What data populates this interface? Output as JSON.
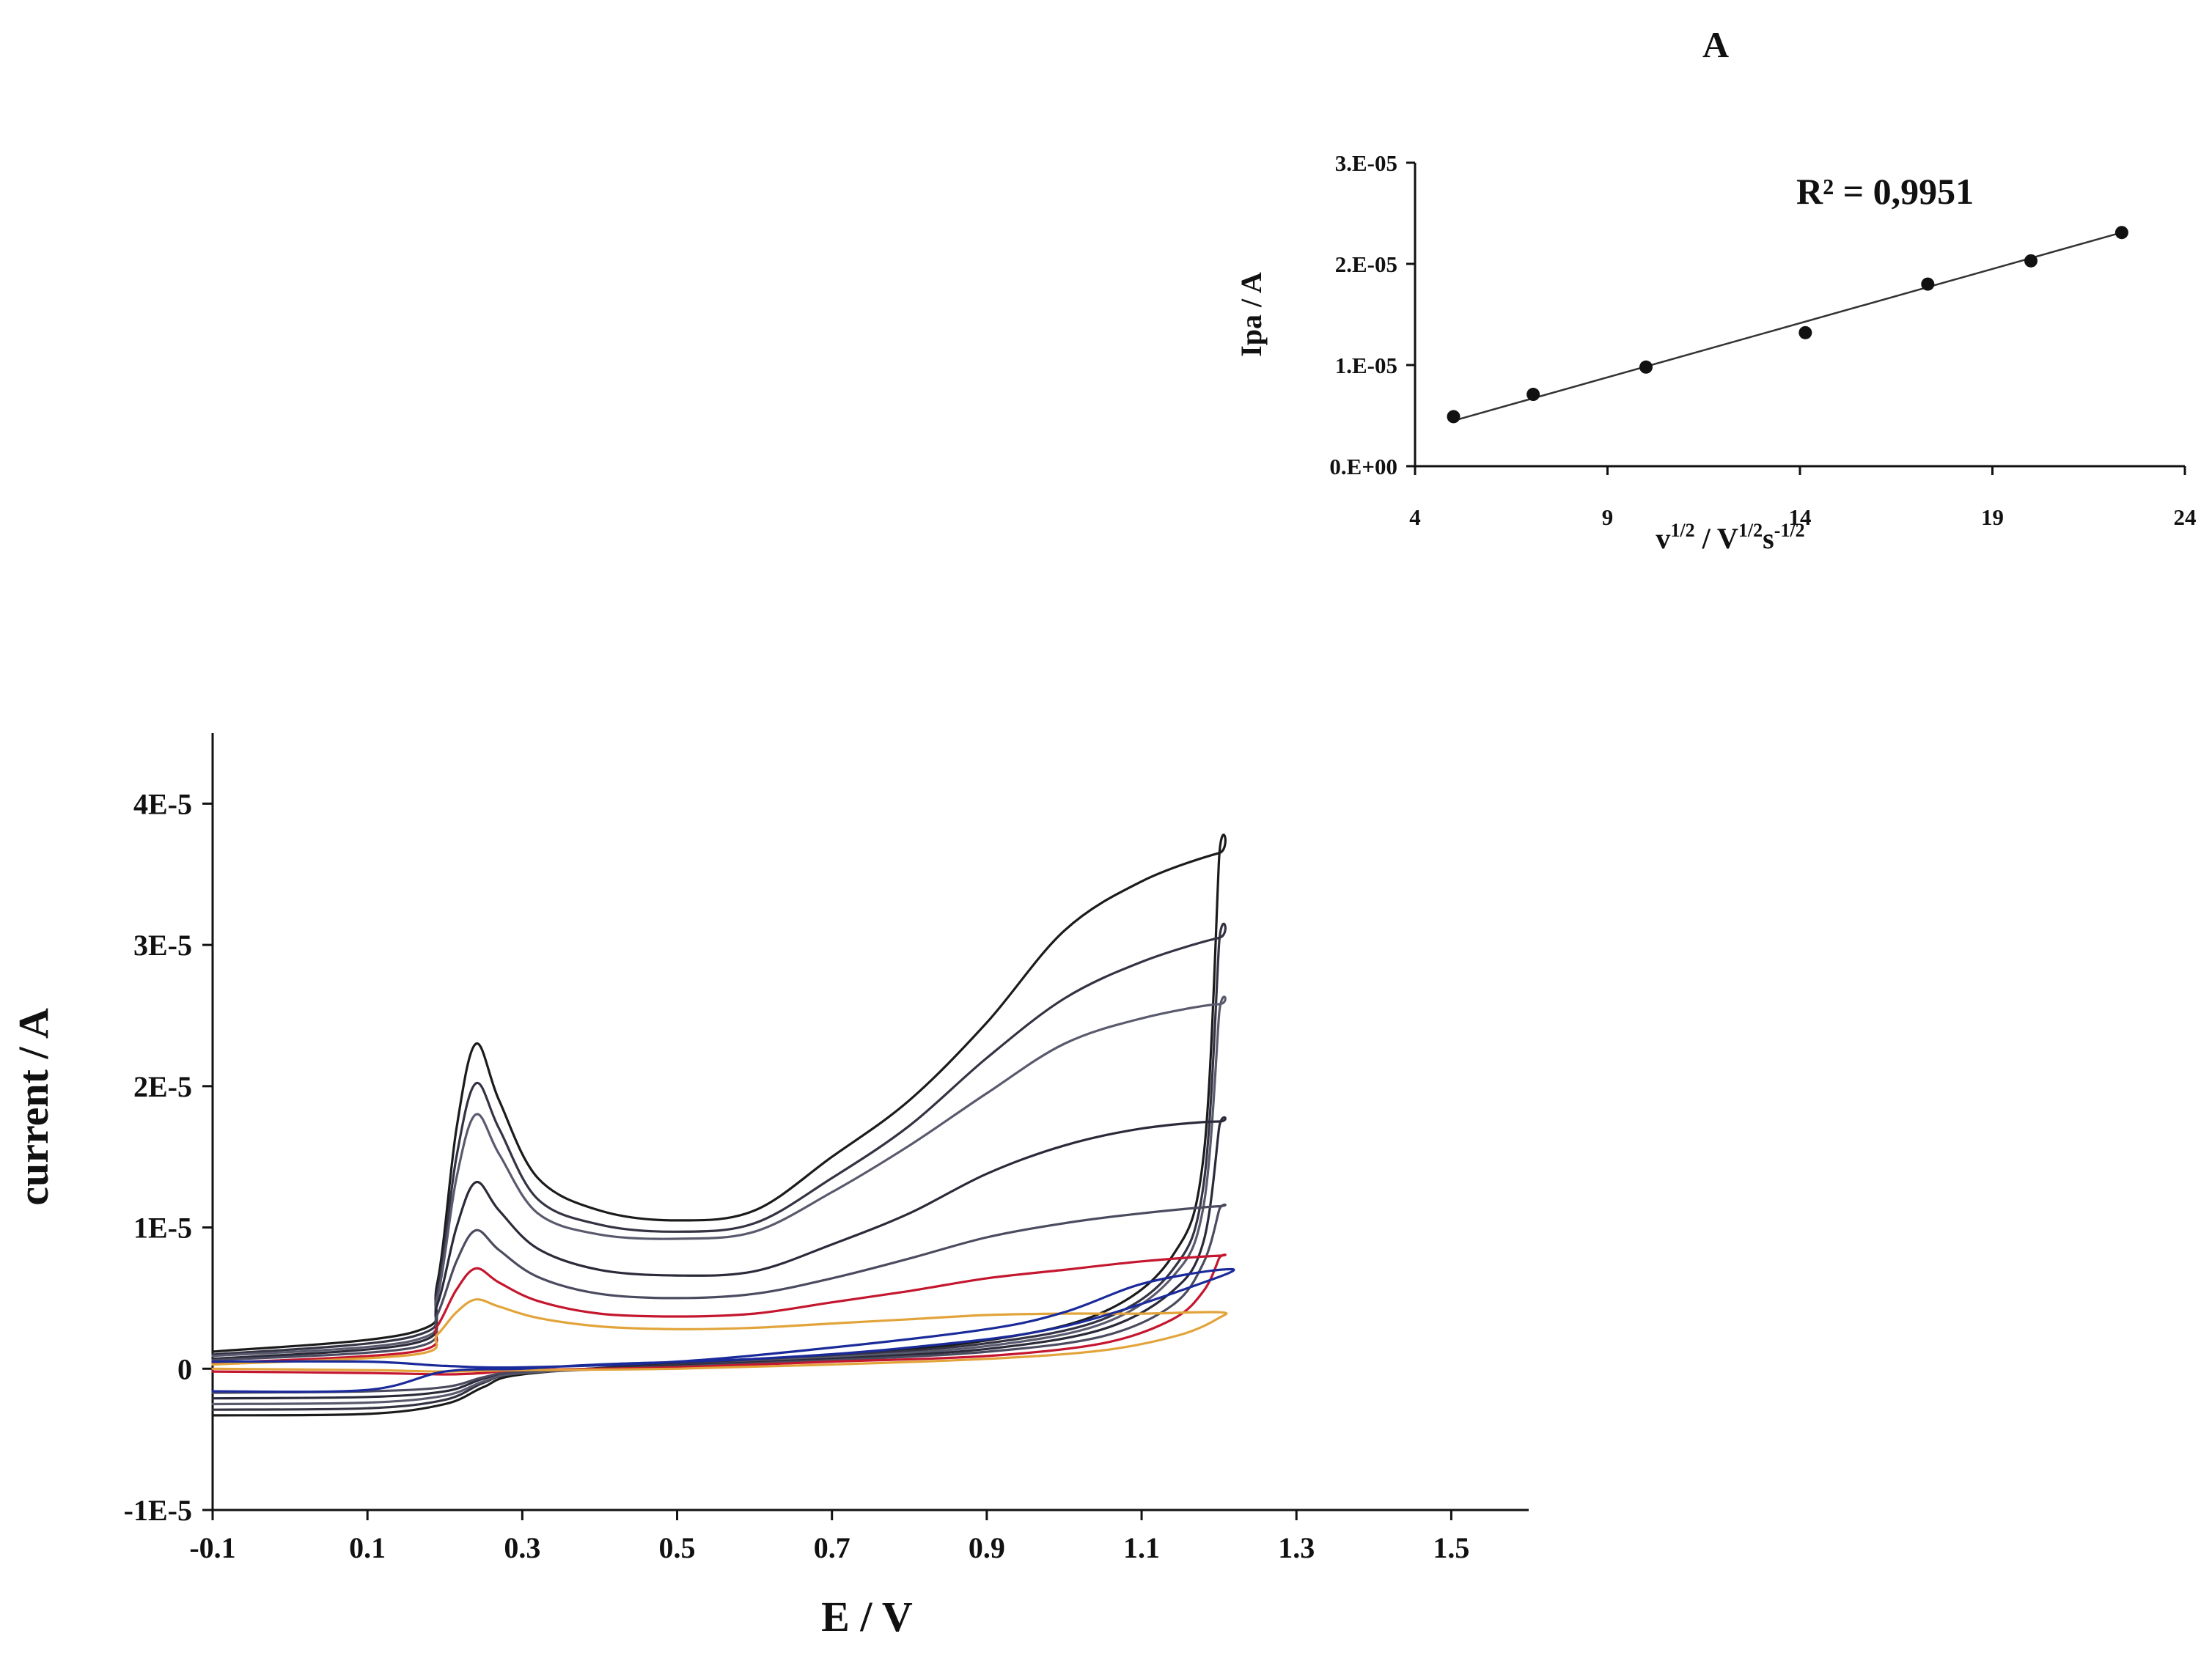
{
  "chart_data": [
    {
      "id": "cv",
      "type": "line",
      "title": "",
      "xlabel": "E / V",
      "ylabel": "current / A",
      "xlim": [
        -0.1,
        1.6
      ],
      "ylim": [
        -1e-05,
        4.5e-05
      ],
      "x_ticks": [
        -0.1,
        0.1,
        0.3,
        0.5,
        0.7,
        0.9,
        1.1,
        1.3,
        1.5
      ],
      "x_tick_labels": [
        "-0.1",
        "0.1",
        "0.3",
        "0.5",
        "0.7",
        "0.9",
        "1.1",
        "1.3",
        "1.5"
      ],
      "y_ticks": [
        -1e-05,
        0,
        1e-05,
        2e-05,
        3e-05,
        4e-05
      ],
      "y_tick_labels": [
        "-1E-5",
        "0",
        "1E-5",
        "2E-5",
        "3E-5",
        "4E-5"
      ],
      "grid": false,
      "legend": "none",
      "series": [
        {
          "color": "#1b1b1b",
          "anodic": [
            [
              -0.1,
              1.2e-06
            ],
            [
              0.16,
              2.6e-06
            ],
            [
              0.19,
              6e-06
            ],
            [
              0.215,
              1.7e-05
            ],
            [
              0.24,
              2.3e-05
            ],
            [
              0.27,
              1.9e-05
            ],
            [
              0.32,
              1.35e-05
            ],
            [
              0.4,
              1.12e-05
            ],
            [
              0.5,
              1.05e-05
            ],
            [
              0.6,
              1.12e-05
            ],
            [
              0.7,
              1.5e-05
            ],
            [
              0.8,
              1.9e-05
            ],
            [
              0.9,
              2.45e-05
            ],
            [
              1.0,
              3.1e-05
            ],
            [
              1.1,
              3.45e-05
            ],
            [
              1.2,
              3.65e-05
            ]
          ],
          "cathodic": [
            [
              1.2,
              3.6e-05
            ],
            [
              1.18,
              1.5e-05
            ],
            [
              1.14,
              8e-06
            ],
            [
              1.05,
              4e-06
            ],
            [
              0.9,
              2e-06
            ],
            [
              0.7,
              1e-06
            ],
            [
              0.5,
              4e-07
            ],
            [
              0.3,
              -4e-07
            ],
            [
              0.25,
              -1.3e-06
            ],
            [
              0.2,
              -2.5e-06
            ],
            [
              0.1,
              -3.2e-06
            ],
            [
              -0.1,
              -3.3e-06
            ]
          ]
        },
        {
          "color": "#333344",
          "anodic": [
            [
              -0.1,
              1e-06
            ],
            [
              0.16,
              2.3e-06
            ],
            [
              0.19,
              5.5e-06
            ],
            [
              0.215,
              1.5e-05
            ],
            [
              0.24,
              2.02e-05
            ],
            [
              0.27,
              1.7e-05
            ],
            [
              0.32,
              1.2e-05
            ],
            [
              0.4,
              1.02e-05
            ],
            [
              0.5,
              9.7e-06
            ],
            [
              0.6,
              1.03e-05
            ],
            [
              0.7,
              1.35e-05
            ],
            [
              0.8,
              1.72e-05
            ],
            [
              0.9,
              2.2e-05
            ],
            [
              1.0,
              2.62e-05
            ],
            [
              1.1,
              2.88e-05
            ],
            [
              1.2,
              3.05e-05
            ]
          ],
          "cathodic": [
            [
              1.2,
              3e-05
            ],
            [
              1.18,
              1.3e-05
            ],
            [
              1.14,
              7e-06
            ],
            [
              1.05,
              3.5e-06
            ],
            [
              0.9,
              1.8e-06
            ],
            [
              0.7,
              9e-07
            ],
            [
              0.5,
              3e-07
            ],
            [
              0.3,
              -3e-07
            ],
            [
              0.25,
              -1e-06
            ],
            [
              0.2,
              -2.2e-06
            ],
            [
              0.1,
              -2.8e-06
            ],
            [
              -0.1,
              -2.9e-06
            ]
          ]
        },
        {
          "color": "#5a5a6e",
          "anodic": [
            [
              -0.1,
              9e-07
            ],
            [
              0.16,
              2e-06
            ],
            [
              0.19,
              5e-06
            ],
            [
              0.215,
              1.35e-05
            ],
            [
              0.24,
              1.8e-05
            ],
            [
              0.27,
              1.52e-05
            ],
            [
              0.32,
              1.1e-05
            ],
            [
              0.4,
              9.5e-06
            ],
            [
              0.5,
              9.2e-06
            ],
            [
              0.6,
              9.7e-06
            ],
            [
              0.7,
              1.25e-05
            ],
            [
              0.8,
              1.58e-05
            ],
            [
              0.9,
              1.95e-05
            ],
            [
              1.0,
              2.3e-05
            ],
            [
              1.1,
              2.48e-05
            ],
            [
              1.2,
              2.58e-05
            ]
          ],
          "cathodic": [
            [
              1.2,
              2.5e-05
            ],
            [
              1.18,
              1.15e-05
            ],
            [
              1.14,
              6.5e-06
            ],
            [
              1.05,
              3.2e-06
            ],
            [
              0.9,
              1.6e-06
            ],
            [
              0.7,
              8e-07
            ],
            [
              0.5,
              2e-07
            ],
            [
              0.3,
              -3e-07
            ],
            [
              0.25,
              -9e-07
            ],
            [
              0.2,
              -1.9e-06
            ],
            [
              0.1,
              -2.4e-06
            ],
            [
              -0.1,
              -2.5e-06
            ]
          ]
        },
        {
          "color": "#2a2a3a",
          "anodic": [
            [
              -0.1,
              7e-07
            ],
            [
              0.16,
              1.8e-06
            ],
            [
              0.19,
              4.5e-06
            ],
            [
              0.215,
              1e-05
            ],
            [
              0.24,
              1.32e-05
            ],
            [
              0.27,
              1.12e-05
            ],
            [
              0.32,
              8.5e-06
            ],
            [
              0.4,
              7e-06
            ],
            [
              0.5,
              6.6e-06
            ],
            [
              0.6,
              6.9e-06
            ],
            [
              0.7,
              8.8e-06
            ],
            [
              0.8,
              1.1e-05
            ],
            [
              0.9,
              1.38e-05
            ],
            [
              1.0,
              1.58e-05
            ],
            [
              1.1,
              1.7e-05
            ],
            [
              1.2,
              1.75e-05
            ]
          ],
          "cathodic": [
            [
              1.2,
              1.7e-05
            ],
            [
              1.18,
              9e-06
            ],
            [
              1.14,
              5.5e-06
            ],
            [
              1.05,
              2.8e-06
            ],
            [
              0.9,
              1.4e-06
            ],
            [
              0.7,
              7e-07
            ],
            [
              0.5,
              2e-07
            ],
            [
              0.3,
              -2e-07
            ],
            [
              0.25,
              -7e-07
            ],
            [
              0.2,
              -1.6e-06
            ],
            [
              0.1,
              -2e-06
            ],
            [
              -0.1,
              -2.1e-06
            ]
          ]
        },
        {
          "color": "#4b4b60",
          "anodic": [
            [
              -0.1,
              6e-07
            ],
            [
              0.16,
              1.5e-06
            ],
            [
              0.19,
              3.8e-06
            ],
            [
              0.215,
              7.6e-06
            ],
            [
              0.24,
              9.8e-06
            ],
            [
              0.27,
              8.4e-06
            ],
            [
              0.32,
              6.5e-06
            ],
            [
              0.4,
              5.3e-06
            ],
            [
              0.5,
              5e-06
            ],
            [
              0.6,
              5.3e-06
            ],
            [
              0.7,
              6.4e-06
            ],
            [
              0.8,
              7.8e-06
            ],
            [
              0.9,
              9.3e-06
            ],
            [
              1.0,
              1.03e-05
            ],
            [
              1.1,
              1.1e-05
            ],
            [
              1.2,
              1.15e-05
            ]
          ],
          "cathodic": [
            [
              1.2,
              1.12e-05
            ],
            [
              1.18,
              7.5e-06
            ],
            [
              1.14,
              4.5e-06
            ],
            [
              1.05,
              2.3e-06
            ],
            [
              0.9,
              1.2e-06
            ],
            [
              0.7,
              6e-07
            ],
            [
              0.5,
              1.5e-07
            ],
            [
              0.3,
              -2e-07
            ],
            [
              0.25,
              -6e-07
            ],
            [
              0.2,
              -1.3e-06
            ],
            [
              0.1,
              -1.6e-06
            ],
            [
              -0.1,
              -1.7e-06
            ]
          ]
        },
        {
          "color": "#c4162e",
          "anodic": [
            [
              -0.1,
              4e-07
            ],
            [
              0.16,
              1.2e-06
            ],
            [
              0.19,
              3e-06
            ],
            [
              0.215,
              5.6e-06
            ],
            [
              0.24,
              7.1e-06
            ],
            [
              0.27,
              6.1e-06
            ],
            [
              0.32,
              4.8e-06
            ],
            [
              0.4,
              3.9e-06
            ],
            [
              0.5,
              3.7e-06
            ],
            [
              0.6,
              3.9e-06
            ],
            [
              0.7,
              4.7e-06
            ],
            [
              0.8,
              5.5e-06
            ],
            [
              0.9,
              6.4e-06
            ],
            [
              1.0,
              7e-06
            ],
            [
              1.1,
              7.6e-06
            ],
            [
              1.2,
              8e-06
            ]
          ],
          "cathodic": [
            [
              1.2,
              7.8e-06
            ],
            [
              1.18,
              5.5e-06
            ],
            [
              1.14,
              3.5e-06
            ],
            [
              1.05,
              1.8e-06
            ],
            [
              0.9,
              9e-07
            ],
            [
              0.7,
              5e-07
            ],
            [
              0.5,
              1e-07
            ],
            [
              0.3,
              -1e-07
            ],
            [
              0.25,
              -3e-07
            ],
            [
              0.2,
              -4e-07
            ],
            [
              0.1,
              -3e-07
            ],
            [
              -0.1,
              -2e-07
            ]
          ]
        },
        {
          "color": "#e2a43a",
          "anodic": [
            [
              -0.1,
              3e-07
            ],
            [
              0.16,
              1e-06
            ],
            [
              0.19,
              2.4e-06
            ],
            [
              0.215,
              4e-06
            ],
            [
              0.24,
              4.9e-06
            ],
            [
              0.27,
              4.4e-06
            ],
            [
              0.32,
              3.6e-06
            ],
            [
              0.4,
              3e-06
            ],
            [
              0.5,
              2.8e-06
            ],
            [
              0.6,
              2.9e-06
            ],
            [
              0.7,
              3.2e-06
            ],
            [
              0.8,
              3.5e-06
            ],
            [
              0.9,
              3.8e-06
            ],
            [
              1.0,
              3.9e-06
            ],
            [
              1.1,
              3.9e-06
            ],
            [
              1.2,
              4e-06
            ]
          ],
          "cathodic": [
            [
              1.2,
              3.6e-06
            ],
            [
              1.15,
              2.4e-06
            ],
            [
              1.05,
              1.3e-06
            ],
            [
              0.9,
              7e-07
            ],
            [
              0.7,
              3e-07
            ],
            [
              0.5,
              0
            ],
            [
              0.3,
              -1e-07
            ],
            [
              0.2,
              -2e-07
            ],
            [
              0.1,
              -1e-07
            ],
            [
              -0.1,
              0
            ]
          ]
        },
        {
          "color": "#1a2a9a",
          "anodic": [
            [
              -0.1,
              5e-07
            ],
            [
              0.1,
              5e-07
            ],
            [
              0.2,
              2e-07
            ],
            [
              0.3,
              1e-07
            ],
            [
              0.5,
              5e-07
            ],
            [
              0.7,
              1.5e-06
            ],
            [
              0.9,
              2.8e-06
            ],
            [
              1.0,
              4e-06
            ],
            [
              1.1,
              6e-06
            ],
            [
              1.2,
              7e-06
            ]
          ],
          "cathodic": [
            [
              1.2,
              6.5e-06
            ],
            [
              1.0,
              3e-06
            ],
            [
              0.8,
              1.5e-06
            ],
            [
              0.6,
              7e-07
            ],
            [
              0.4,
              3e-07
            ],
            [
              0.3,
              0
            ],
            [
              0.2,
              -2e-07
            ],
            [
              0.1,
              -1.5e-06
            ],
            [
              -0.1,
              -1.6e-06
            ]
          ]
        }
      ]
    },
    {
      "id": "inset",
      "panel_label": "A",
      "type": "scatter",
      "title": "",
      "xlabel": "v1/2 / V1/2s-1/2",
      "ylabel": "Ipa / A",
      "xlim": [
        4,
        24
      ],
      "ylim": [
        0,
        3e-05
      ],
      "x_ticks": [
        4,
        9,
        14,
        19,
        24
      ],
      "x_tick_labels": [
        "4",
        "9",
        "14",
        "19",
        "24"
      ],
      "y_ticks": [
        0,
        1e-05,
        2e-05,
        3e-05
      ],
      "y_tick_labels": [
        "0.E+00",
        "1.E-05",
        "2.E-05",
        "3.E-05"
      ],
      "grid": false,
      "legend": "none",
      "annotation": "R² = 0,9951",
      "x": [
        5.0,
        7.07,
        10.0,
        14.14,
        17.32,
        20.0,
        22.36
      ],
      "y": [
        4.9e-06,
        7.1e-06,
        9.8e-06,
        1.32e-05,
        1.8e-05,
        2.03e-05,
        2.31e-05
      ],
      "trendline": {
        "x": [
          5.0,
          22.36
        ],
        "y": [
          4.5e-06,
          2.31e-05
        ]
      }
    }
  ]
}
